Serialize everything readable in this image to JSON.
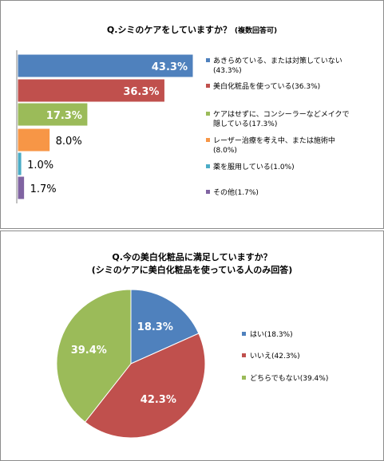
{
  "colors": {
    "blue": "#4f81bd",
    "red": "#c0504d",
    "green": "#9bbb59",
    "orange": "#f79646",
    "teal": "#4bacc6",
    "purple": "#8064a2"
  },
  "chart_data": [
    {
      "type": "bar",
      "orientation": "horizontal",
      "title": "Q.シミのケアをしていますか？",
      "title_note": "(複数回答可)",
      "legend_position": "right",
      "categories": [
        "あきらめている、または対策していない",
        "美白化粧品を使っている",
        "ケアはせずに、コンシーラーなどメイクで隠している",
        "レーザー治療を考え中、または施術中",
        "薬を服用している",
        "その他"
      ],
      "values": [
        43.3,
        36.3,
        17.3,
        8.0,
        1.0,
        1.7
      ],
      "value_labels": [
        "43.3%",
        "36.3%",
        "17.3%",
        "8.0%",
        "1.0%",
        "1.7%"
      ],
      "legend": [
        "あきらめている、または対策していない(43.3%)",
        "美白化粧品を使っている(36.3%)",
        "ケアはせずに、コンシーラーなどメイクで隠している(17.3%)",
        "レーザー治療を考え中、または施術中(8.0%)",
        "薬を服用している(1.0%)",
        "その他(1.7%)"
      ],
      "colors": [
        "#4f81bd",
        "#c0504d",
        "#9bbb59",
        "#f79646",
        "#4bacc6",
        "#8064a2"
      ],
      "xlim": [
        0,
        50
      ]
    },
    {
      "type": "pie",
      "title": "Q.今の美白化粧品に満足していますか？",
      "subtitle": "(シミのケアに美白化粧品を使っている人のみ回答)",
      "legend_position": "right",
      "categories": [
        "はい",
        "いいえ",
        "どちらでもない"
      ],
      "values": [
        18.3,
        42.3,
        39.4
      ],
      "value_labels": [
        "18.3%",
        "42.3%",
        "39.4%"
      ],
      "legend": [
        "はい(18.3%)",
        "いいえ(42.3%)",
        "どちらでもない(39.4%)"
      ],
      "colors": [
        "#4f81bd",
        "#c0504d",
        "#9bbb59"
      ]
    }
  ]
}
